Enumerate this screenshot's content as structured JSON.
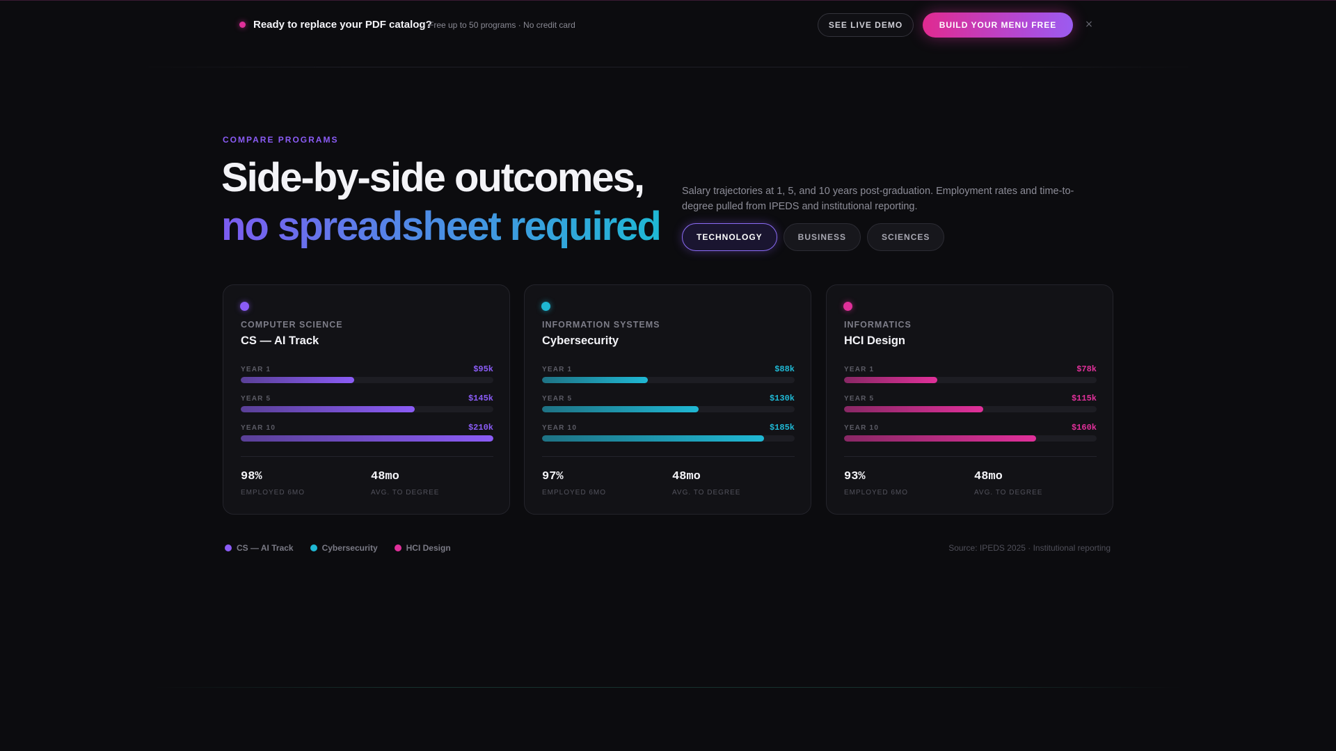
{
  "banner": {
    "title": "Ready to replace your PDF catalog?",
    "subtitle": "Free up to 50 programs · No credit card",
    "demo_label": "SEE LIVE DEMO",
    "build_label": "BUILD YOUR MENU FREE",
    "close_label": "×"
  },
  "hero": {
    "eyebrow": "COMPARE PROGRAMS",
    "title_line1": "Side-by-side outcomes,",
    "title_line2": "no spreadsheet required",
    "description": "Salary trajectories at 1, 5, and 10 years post-graduation. Employment rates and time-to-degree pulled from IPEDS and institutional reporting."
  },
  "filters": [
    {
      "label": "TECHNOLOGY",
      "active": true
    },
    {
      "label": "BUSINESS",
      "active": false
    },
    {
      "label": "SCIENCES",
      "active": false
    }
  ],
  "cards": [
    {
      "category": "COMPUTER SCIENCE",
      "title": "CS — AI Track",
      "accent": "#8b5cf6",
      "bars": [
        {
          "label": "YEAR 1",
          "value": "$95k",
          "fraction": 0.45
        },
        {
          "label": "YEAR 5",
          "value": "$145k",
          "fraction": 0.69
        },
        {
          "label": "YEAR 10",
          "value": "$210k",
          "fraction": 1.0
        }
      ],
      "employed": "98%",
      "employed_label": "EMPLOYED 6MO",
      "degree": "48mo",
      "degree_label": "AVG. TO DEGREE"
    },
    {
      "category": "INFORMATION SYSTEMS",
      "title": "Cybersecurity",
      "accent": "#1fb8d4",
      "bars": [
        {
          "label": "YEAR 1",
          "value": "$88k",
          "fraction": 0.42
        },
        {
          "label": "YEAR 5",
          "value": "$130k",
          "fraction": 0.62
        },
        {
          "label": "YEAR 10",
          "value": "$185k",
          "fraction": 0.88
        }
      ],
      "employed": "97%",
      "employed_label": "EMPLOYED 6MO",
      "degree": "48mo",
      "degree_label": "AVG. TO DEGREE"
    },
    {
      "category": "INFORMATICS",
      "title": "HCI Design",
      "accent": "#e0309a",
      "bars": [
        {
          "label": "YEAR 1",
          "value": "$78k",
          "fraction": 0.37
        },
        {
          "label": "YEAR 5",
          "value": "$115k",
          "fraction": 0.55
        },
        {
          "label": "YEAR 10",
          "value": "$160k",
          "fraction": 0.76
        }
      ],
      "employed": "93%",
      "employed_label": "EMPLOYED 6MO",
      "degree": "48mo",
      "degree_label": "AVG. TO DEGREE"
    }
  ],
  "legend": [
    {
      "label": "CS — AI Track",
      "color": "#8b5cf6"
    },
    {
      "label": "Cybersecurity",
      "color": "#1fb8d4"
    },
    {
      "label": "HCI Design",
      "color": "#e0309a"
    }
  ],
  "source": "Source: IPEDS 2025 · Institutional reporting"
}
